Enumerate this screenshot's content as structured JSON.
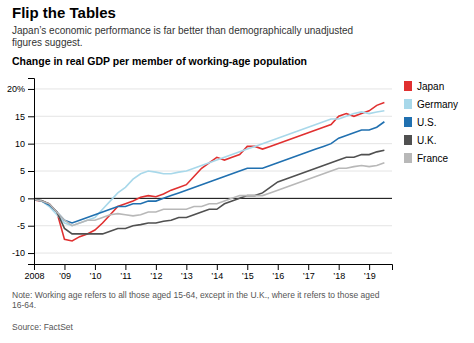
{
  "chart_data": {
    "type": "line",
    "title": "Flip the Tables",
    "subtitle": "Japan’s economic performance is far better than demographically unadjusted\nfigures suggest.",
    "chart_title": "Change in real GDP per member of working-age population",
    "note": "Note: Working age refers to all those aged 15-64, except in the U.K., where it refers to those aged\n16-64.",
    "source": "Source: FactSet",
    "x": [
      2008.0,
      2008.25,
      2008.5,
      2008.75,
      2009.0,
      2009.25,
      2009.5,
      2009.75,
      2010.0,
      2010.25,
      2010.5,
      2010.75,
      2011.0,
      2011.25,
      2011.5,
      2011.75,
      2012.0,
      2012.25,
      2012.5,
      2012.75,
      2013.0,
      2013.25,
      2013.5,
      2013.75,
      2014.0,
      2014.25,
      2014.5,
      2014.75,
      2015.0,
      2015.25,
      2015.5,
      2015.75,
      2016.0,
      2016.25,
      2016.5,
      2016.75,
      2017.0,
      2017.25,
      2017.5,
      2017.75,
      2018.0,
      2018.25,
      2018.5,
      2018.75,
      2019.0,
      2019.25,
      2019.5
    ],
    "series": [
      {
        "name": "Japan",
        "color": "#e03030",
        "values": [
          -0.3,
          -0.5,
          -1.0,
          -2.5,
          -7.5,
          -7.8,
          -7.0,
          -6.5,
          -5.8,
          -4.5,
          -3.0,
          -1.5,
          -1.0,
          -0.5,
          0.2,
          0.5,
          0.3,
          0.8,
          1.5,
          2.0,
          2.5,
          4.0,
          5.5,
          6.5,
          7.5,
          7.0,
          7.5,
          8.0,
          9.5,
          9.5,
          9.0,
          9.5,
          10.0,
          10.5,
          11.0,
          11.5,
          12.0,
          12.5,
          13.0,
          13.5,
          15.0,
          15.5,
          15.0,
          15.5,
          16.0,
          17.0,
          17.5
        ]
      },
      {
        "name": "Germany",
        "color": "#a8d8ea",
        "values": [
          -0.2,
          -0.5,
          -1.5,
          -3.0,
          -4.5,
          -5.0,
          -4.5,
          -4.0,
          -3.5,
          -2.0,
          -0.5,
          1.0,
          2.0,
          3.5,
          4.5,
          5.0,
          4.8,
          4.5,
          4.5,
          4.8,
          5.0,
          5.5,
          6.0,
          6.5,
          7.0,
          7.5,
          8.0,
          8.5,
          9.0,
          9.5,
          10.0,
          10.5,
          11.0,
          11.5,
          12.0,
          12.5,
          13.0,
          13.5,
          14.0,
          14.5,
          14.5,
          15.0,
          15.5,
          15.8,
          15.5,
          15.8,
          16.0
        ]
      },
      {
        "name": "U.S.",
        "color": "#2070b0",
        "values": [
          -0.2,
          -0.5,
          -1.2,
          -2.5,
          -4.0,
          -4.5,
          -4.0,
          -3.5,
          -3.0,
          -2.5,
          -2.0,
          -1.5,
          -1.5,
          -1.0,
          -1.0,
          -0.5,
          -0.5,
          0.0,
          0.5,
          1.0,
          1.5,
          2.0,
          2.5,
          3.0,
          3.5,
          4.0,
          4.5,
          5.0,
          5.5,
          5.5,
          5.5,
          6.0,
          6.5,
          7.0,
          7.5,
          8.0,
          8.5,
          9.0,
          9.5,
          10.0,
          11.0,
          11.5,
          12.0,
          12.5,
          12.5,
          13.0,
          14.0
        ]
      },
      {
        "name": "U.K.",
        "color": "#505050",
        "values": [
          -0.2,
          -0.4,
          -1.0,
          -2.5,
          -5.5,
          -6.5,
          -6.5,
          -6.5,
          -6.5,
          -6.5,
          -6.0,
          -5.5,
          -5.5,
          -5.0,
          -4.8,
          -4.5,
          -4.5,
          -4.2,
          -4.0,
          -3.5,
          -3.5,
          -3.0,
          -2.5,
          -2.0,
          -2.0,
          -1.0,
          -0.5,
          0.0,
          0.5,
          0.5,
          1.0,
          2.0,
          3.0,
          3.5,
          4.0,
          4.5,
          5.0,
          5.5,
          6.0,
          6.5,
          7.0,
          7.5,
          7.5,
          8.0,
          8.0,
          8.5,
          8.8
        ]
      },
      {
        "name": "France",
        "color": "#b8b8b8",
        "values": [
          -0.2,
          -0.5,
          -1.0,
          -2.5,
          -4.0,
          -5.0,
          -4.5,
          -4.0,
          -4.0,
          -3.5,
          -3.0,
          -2.8,
          -3.0,
          -3.2,
          -3.0,
          -2.5,
          -2.5,
          -2.0,
          -2.0,
          -2.0,
          -2.0,
          -1.5,
          -1.5,
          -1.0,
          -1.0,
          -0.5,
          0.0,
          0.5,
          0.5,
          0.5,
          0.5,
          1.0,
          1.5,
          2.0,
          2.5,
          3.0,
          3.5,
          4.0,
          4.5,
          5.0,
          5.5,
          5.5,
          5.8,
          6.0,
          5.8,
          6.0,
          6.5
        ]
      }
    ],
    "xlim": [
      2008,
      2019.75
    ],
    "xticks": [
      2008,
      {
        "value": 2009,
        "label": "’09"
      },
      {
        "value": 2010,
        "label": "’10"
      },
      {
        "value": 2011,
        "label": "’11"
      },
      {
        "value": 2012,
        "label": "’12"
      },
      {
        "value": 2013,
        "label": "’13"
      },
      {
        "value": 2014,
        "label": "’14"
      },
      {
        "value": 2015,
        "label": "’15"
      },
      {
        "value": 2016,
        "label": "’16"
      },
      {
        "value": 2017,
        "label": "’17"
      },
      {
        "value": 2018,
        "label": "’18"
      },
      {
        "value": 2019,
        "label": "’19"
      }
    ],
    "ylim": [
      -12,
      22
    ],
    "yticks": [
      -10,
      -5,
      0,
      5,
      10,
      15,
      {
        "value": 20,
        "label": "20%"
      }
    ],
    "grid": true,
    "legend": "right"
  }
}
